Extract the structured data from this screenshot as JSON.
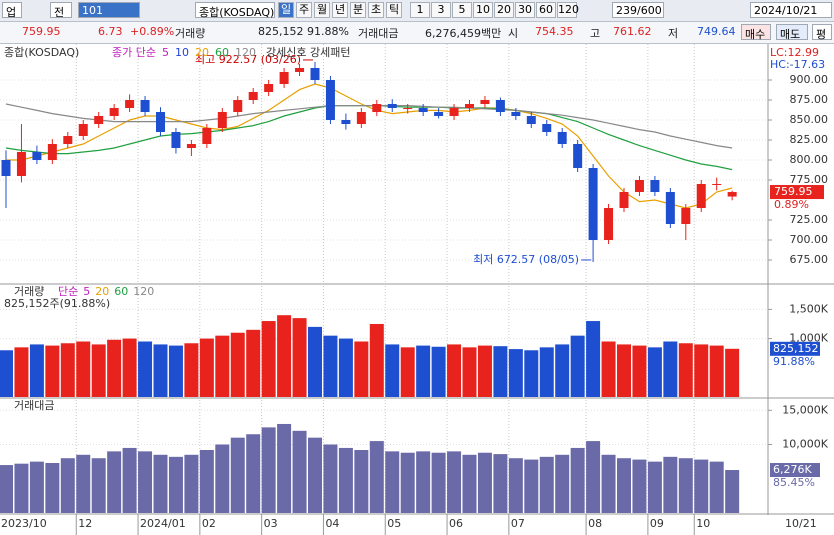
{
  "toolbar": {
    "b1": "업",
    "b2": "전",
    "code": "101",
    "name": "종합(KOSDAQ)",
    "periods": [
      "일",
      "주",
      "월",
      "년",
      "분",
      "초",
      "틱"
    ],
    "nums": [
      "1",
      "3",
      "5",
      "10",
      "20",
      "30",
      "60",
      "120"
    ],
    "count": "239/600",
    "date": "2024/10/21"
  },
  "info": {
    "price": "759.95",
    "change": "6.73",
    "rate": "+0.89%",
    "vol_label": "거래량",
    "vol": "825,152",
    "vol_rate": "91.88%",
    "amt_label": "거래대금",
    "amt": "6,276,459백만",
    "o_label": "시",
    "o": "754.35",
    "h_label": "고",
    "h": "761.62",
    "l_label": "저",
    "l": "749.64",
    "buy": "매수",
    "sell": "매도",
    "avg": "평"
  },
  "chart_data": [
    {
      "type": "candlestick",
      "title": "종합(KOSDAQ)",
      "signal": "강세신호 강세패턴",
      "lc": "LC:12.99",
      "hc": "HC:-17.63",
      "categories": [
        "2023/10",
        null,
        null,
        null,
        null,
        "12",
        null,
        null,
        null,
        "2024/01",
        null,
        null,
        null,
        "02",
        null,
        null,
        null,
        "03",
        null,
        null,
        null,
        "04",
        null,
        null,
        null,
        "05",
        null,
        null,
        null,
        "06",
        null,
        null,
        null,
        "07",
        null,
        null,
        null,
        null,
        "08",
        null,
        null,
        null,
        "09",
        null,
        null,
        "10",
        null,
        null
      ],
      "end_label": "10/21",
      "open": [
        800,
        780,
        810,
        800,
        820,
        830,
        845,
        855,
        865,
        875,
        860,
        835,
        815,
        820,
        840,
        860,
        875,
        885,
        895,
        910,
        915,
        900,
        850,
        845,
        860,
        870,
        865,
        865,
        860,
        855,
        865,
        870,
        875,
        860,
        855,
        845,
        835,
        820,
        790,
        700,
        740,
        760,
        775,
        760,
        720,
        740,
        770,
        754.35
      ],
      "high": [
        812,
        845,
        818,
        826,
        835,
        850,
        860,
        870,
        882,
        880,
        866,
        840,
        825,
        845,
        865,
        880,
        890,
        900,
        915,
        920,
        922.57,
        905,
        858,
        865,
        875,
        876,
        870,
        870,
        865,
        870,
        875,
        880,
        878,
        865,
        860,
        850,
        840,
        825,
        795,
        745,
        765,
        780,
        780,
        765,
        745,
        775,
        778,
        761.62
      ],
      "low": [
        740,
        772,
        795,
        795,
        815,
        825,
        840,
        850,
        860,
        855,
        830,
        808,
        805,
        815,
        835,
        855,
        870,
        880,
        890,
        905,
        895,
        845,
        838,
        840,
        855,
        860,
        858,
        855,
        852,
        850,
        860,
        865,
        855,
        850,
        840,
        830,
        815,
        785,
        672.57,
        695,
        735,
        755,
        755,
        715,
        700,
        735,
        762,
        749.64
      ],
      "close": [
        780,
        810,
        800,
        820,
        830,
        845,
        855,
        865,
        875,
        860,
        835,
        815,
        820,
        840,
        860,
        875,
        885,
        895,
        910,
        915,
        900,
        850,
        845,
        860,
        870,
        865,
        865,
        860,
        855,
        865,
        870,
        875,
        860,
        855,
        845,
        835,
        820,
        790,
        700,
        740,
        760,
        775,
        760,
        720,
        740,
        770,
        770,
        759.95
      ],
      "up_color": "#e8221c",
      "down_color": "#1f4fd1",
      "ylim": [
        646.25,
        941.25
      ],
      "yticks": [
        {
          "value": 900,
          "label": "900.00"
        },
        {
          "value": 875,
          "label": "875.00"
        },
        {
          "value": 850,
          "label": "850.00"
        },
        {
          "value": 825,
          "label": "825.00"
        },
        {
          "value": 800,
          "label": "800.00"
        },
        {
          "value": 775,
          "label": "775.00"
        },
        {
          "value": 725,
          "label": "725.00"
        },
        {
          "value": 700,
          "label": "700.00"
        },
        {
          "value": 675,
          "label": "675.00"
        }
      ],
      "change_label": "0.89%",
      "high_label": "최고 922.57 (03/26)",
      "low_label": "최저 672.57 (08/05)",
      "legend": [
        {
          "name": "종가 단순",
          "color": "#c020c0"
        },
        {
          "name": "5",
          "color": "#c020c0"
        },
        {
          "name": "10",
          "color": "#2040e0"
        },
        {
          "name": "20",
          "color": "#e8a000"
        },
        {
          "name": "60",
          "color": "#20a040"
        },
        {
          "name": "120",
          "color": "#888888"
        }
      ],
      "series": [
        {
          "color": "#e8a000",
          "values": [
            800,
            800,
            805,
            810,
            815,
            820,
            830,
            840,
            850,
            855,
            855,
            850,
            845,
            840,
            838,
            842,
            852,
            862,
            875,
            888,
            895,
            890,
            880,
            870,
            862,
            858,
            860,
            862,
            862,
            860,
            862,
            865,
            865,
            862,
            858,
            852,
            845,
            830,
            805,
            780,
            760,
            748,
            750,
            745,
            740,
            745,
            760,
            765
          ]
        },
        {
          "color": "#20a040",
          "values": [
            815,
            812,
            810,
            808,
            808,
            810,
            812,
            815,
            820,
            825,
            830,
            832,
            833,
            835,
            837,
            840,
            843,
            848,
            855,
            860,
            865,
            868,
            868,
            868,
            868,
            867,
            866,
            866,
            866,
            865,
            865,
            865,
            864,
            862,
            860,
            858,
            853,
            848,
            840,
            832,
            825,
            818,
            812,
            806,
            800,
            795,
            792,
            788
          ]
        },
        {
          "color": "#888888",
          "values": [
            870,
            866,
            862,
            858,
            855,
            852,
            850,
            848,
            848,
            848,
            848,
            848,
            848,
            850,
            852,
            855,
            858,
            860,
            862,
            864,
            866,
            868,
            868,
            868,
            868,
            868,
            868,
            867,
            866,
            866,
            865,
            864,
            863,
            862,
            860,
            858,
            856,
            853,
            850,
            846,
            842,
            838,
            835,
            830,
            826,
            822,
            818,
            815
          ]
        }
      ]
    },
    {
      "type": "bar",
      "title": "거래량",
      "legend": [
        {
          "name": "단순",
          "color": "#c020c0"
        },
        {
          "name": "5",
          "color": "#c020c0"
        },
        {
          "name": "20",
          "color": "#e8a000"
        },
        {
          "name": "60",
          "color": "#20a040"
        },
        {
          "name": "120",
          "color": "#888888"
        }
      ],
      "subtitle": "825,152주(91.88%)",
      "last_label": "825,152",
      "rate_label": "91.88%",
      "values": [
        800,
        850,
        900,
        880,
        920,
        950,
        900,
        980,
        1000,
        950,
        900,
        880,
        920,
        1000,
        1050,
        1100,
        1150,
        1300,
        1400,
        1350,
        1200,
        1050,
        1000,
        950,
        1250,
        900,
        850,
        880,
        860,
        900,
        850,
        880,
        870,
        820,
        800,
        850,
        900,
        1050,
        1300,
        950,
        900,
        880,
        850,
        950,
        920,
        900,
        880,
        825.152
      ],
      "ylim": [
        0,
        1900
      ],
      "yticks": [
        {
          "value": 1500,
          "label": "1,500K"
        },
        {
          "value": 1000,
          "label": "1,000K"
        }
      ]
    },
    {
      "type": "bar",
      "title": "거래대금",
      "color": "#6a6aa8",
      "last_label": "6,276K",
      "rate_label": "85.45%",
      "values": [
        7000,
        7200,
        7500,
        7300,
        8000,
        8500,
        8000,
        9000,
        9500,
        9000,
        8500,
        8200,
        8500,
        9200,
        10000,
        11000,
        11500,
        12500,
        13000,
        12000,
        11000,
        10000,
        9500,
        9200,
        10500,
        9000,
        8800,
        9000,
        8800,
        9000,
        8500,
        8800,
        8600,
        8000,
        7800,
        8200,
        8500,
        9500,
        10500,
        8500,
        8000,
        7800,
        7500,
        8200,
        8000,
        7800,
        7500,
        6276
      ],
      "ylim": [
        0,
        16500
      ],
      "yticks": [
        {
          "value": 15000,
          "label": "15,000K"
        },
        {
          "value": 10000,
          "label": "10,000K"
        }
      ]
    }
  ]
}
